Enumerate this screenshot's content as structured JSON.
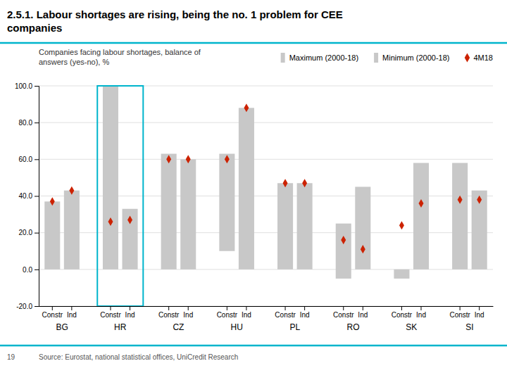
{
  "chart_data": {
    "type": "bar",
    "title": "2.5.1. Labour shortages are rising, being the no. 1 problem for CEE\ncompanies",
    "subtitle": "Companies facing labour shortages, balance of\nanswers (yes-no), %",
    "source": "Source: Eurostat, national statistical offices, UniCredit Research",
    "page_number": "19",
    "groups": [
      "BG",
      "HR",
      "CZ",
      "HU",
      "PL",
      "RO",
      "SK",
      "SI"
    ],
    "categories": [
      "Constr",
      "Ind",
      "Constr",
      "Ind",
      "Constr",
      "Ind",
      "Constr",
      "Ind",
      "Constr",
      "Ind",
      "Constr",
      "Ind",
      "Constr",
      "Ind",
      "Constr",
      "Ind"
    ],
    "series": [
      {
        "name": "Maximum (2000-18)",
        "type": "bar",
        "color": "#c8c8c8",
        "values": [
          37,
          43,
          100,
          33,
          63,
          60,
          63,
          88,
          47,
          47,
          25,
          45,
          0,
          58,
          58,
          43
        ]
      },
      {
        "name": "Minimum (2000-18)",
        "type": "bar",
        "color": "#c8c8c8",
        "values": [
          0,
          0,
          0,
          0,
          0,
          0,
          10,
          0,
          0,
          0,
          -5,
          0,
          -5,
          0,
          0,
          0
        ]
      },
      {
        "name": "4M18",
        "type": "scatter",
        "marker": "diamond",
        "color": "#cc2200",
        "values": [
          37,
          43,
          26,
          27,
          60,
          60,
          60,
          88,
          47,
          47,
          16,
          11,
          24,
          36,
          38,
          38
        ]
      }
    ],
    "highlight": "HR",
    "highlight_color": "#00b5cc",
    "ylim": [
      -20,
      100
    ],
    "yticks": [
      {
        "value": -20,
        "label": "-20.0"
      },
      {
        "value": 0,
        "label": "0.0"
      },
      {
        "value": 20,
        "label": "20.0"
      },
      {
        "value": 40,
        "label": "40.0"
      },
      {
        "value": 60,
        "label": "60.0"
      },
      {
        "value": 80,
        "label": "80.0"
      },
      {
        "value": 100,
        "label": "100.0"
      }
    ],
    "grid": true,
    "legend": "top-right"
  }
}
